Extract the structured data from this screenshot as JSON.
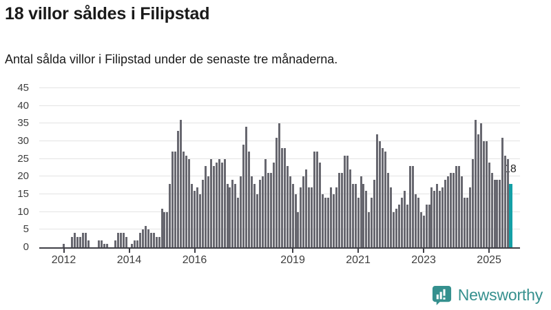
{
  "header": {
    "title": "18 villor såldes i Filipstad",
    "subtitle": "Antal sålda villor i Filipstad under de senaste tre månaderna."
  },
  "chart_data": {
    "type": "bar",
    "title": "18 villor såldes i Filipstad",
    "xlabel": "",
    "ylabel": "",
    "ylim": [
      0,
      45
    ],
    "grid": true,
    "x_start_month": "2012-01",
    "x_end_month": "2025-09",
    "values": [
      1,
      0,
      0,
      3,
      4,
      3,
      3,
      4,
      4,
      2,
      0,
      0,
      0,
      2,
      2,
      1,
      1,
      0,
      0,
      2,
      4,
      4,
      4,
      3,
      0,
      1,
      2,
      2,
      4,
      5,
      6,
      5,
      4,
      4,
      3,
      3,
      11,
      10,
      10,
      18,
      27,
      27,
      33,
      36,
      27,
      26,
      25,
      18,
      16,
      17,
      15,
      19,
      23,
      20,
      25,
      23,
      24,
      25,
      24,
      25,
      18,
      17,
      19,
      18,
      14,
      20,
      29,
      34,
      27,
      20,
      18,
      15,
      19,
      20,
      25,
      21,
      21,
      24,
      31,
      35,
      28,
      28,
      23,
      20,
      18,
      15,
      10,
      17,
      20,
      22,
      17,
      17,
      27,
      27,
      24,
      15,
      14,
      14,
      17,
      15,
      17,
      21,
      21,
      26,
      26,
      22,
      18,
      18,
      14,
      20,
      18,
      16,
      10,
      14,
      19,
      32,
      30,
      28,
      27,
      21,
      17,
      10,
      11,
      12,
      14,
      16,
      12,
      23,
      23,
      15,
      14,
      10,
      9,
      12,
      12,
      17,
      16,
      18,
      16,
      17,
      19,
      20,
      21,
      21,
      23,
      23,
      20,
      14,
      14,
      17,
      25,
      36,
      32,
      35,
      30,
      30,
      24,
      21,
      19,
      19,
      19,
      31,
      26,
      25,
      18
    ],
    "y_ticks": [
      0,
      5,
      10,
      15,
      20,
      25,
      30,
      35,
      40,
      45
    ],
    "x_ticks": [
      {
        "label": "2012",
        "month_index": 0
      },
      {
        "label": "2014",
        "month_index": 24
      },
      {
        "label": "2016",
        "month_index": 48
      },
      {
        "label": "2019",
        "month_index": 84
      },
      {
        "label": "2021",
        "month_index": 108
      },
      {
        "label": "2023",
        "month_index": 132
      },
      {
        "label": "2025",
        "month_index": 156
      }
    ],
    "highlight_last_bar": true,
    "annotation_text": "18",
    "last_value": 18
  },
  "footer": {
    "brand": "Newsworthy"
  },
  "theme": {
    "background": "#ffffff",
    "text_color": "#1a1a1a",
    "muted_text_color": "#3d3d3d",
    "bar_color": "#67676f",
    "highlight_color": "#14a0a6",
    "gridline_color": "#e3e3e3",
    "axis_color": "#3f3f46",
    "brand_color": "#35908e"
  }
}
